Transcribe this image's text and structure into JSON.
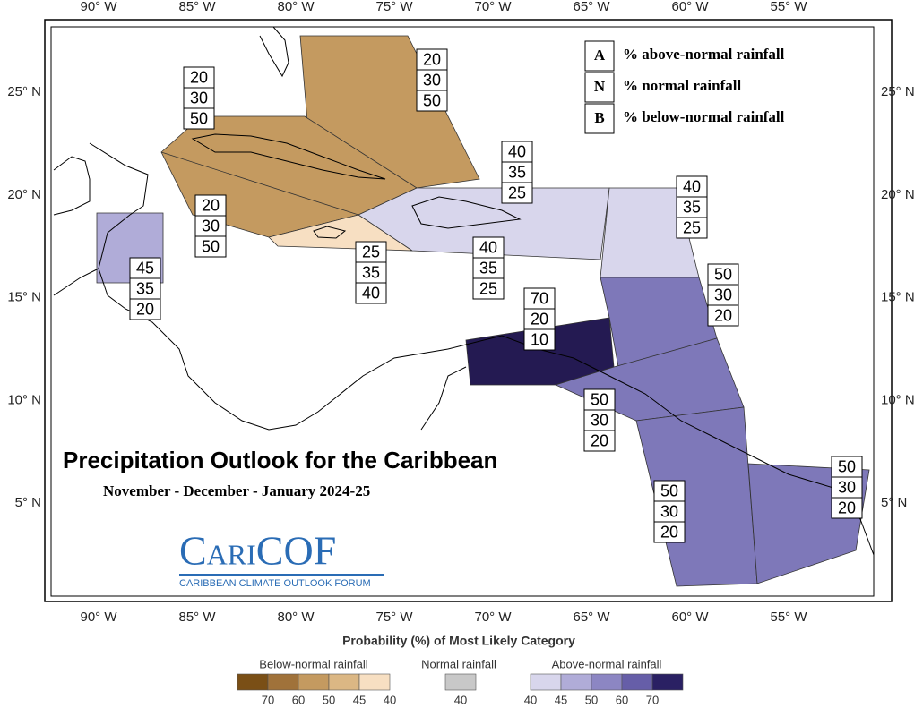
{
  "lon_labels": [
    "90° W",
    "85° W",
    "80° W",
    "75° W",
    "70° W",
    "65° W",
    "60° W",
    "55° W"
  ],
  "lat_labels": [
    "25° N",
    "20° N",
    "15° N",
    "10° N",
    "5° N"
  ],
  "key": [
    {
      "code": "A",
      "text": "% above-normal rainfall"
    },
    {
      "code": "N",
      "text": "% normal rainfall"
    },
    {
      "code": "B",
      "text": "% below-normal rainfall"
    }
  ],
  "boxes": [
    {
      "values": [
        20,
        30,
        50
      ]
    },
    {
      "values": [
        20,
        30,
        50
      ]
    },
    {
      "values": [
        20,
        30,
        50
      ]
    },
    {
      "values": [
        25,
        35,
        40
      ]
    },
    {
      "values": [
        40,
        35,
        25
      ]
    },
    {
      "values": [
        40,
        35,
        25
      ]
    },
    {
      "values": [
        40,
        35,
        25
      ]
    },
    {
      "values": [
        45,
        35,
        20
      ]
    },
    {
      "values": [
        50,
        30,
        20
      ]
    },
    {
      "values": [
        70,
        20,
        10
      ]
    },
    {
      "values": [
        50,
        30,
        20
      ]
    },
    {
      "values": [
        50,
        30,
        20
      ]
    },
    {
      "values": [
        50,
        30,
        20
      ]
    }
  ],
  "title": "Precipitation Outlook for the Caribbean",
  "subtitle": "November - December - January 2024-25",
  "logo": {
    "name": "CariCOF",
    "tagline": "CARIBBEAN CLIMATE OUTLOOK FORUM"
  },
  "legend": {
    "title": "Probability (%) of Most Likely Category",
    "groups": [
      {
        "label": "Below-normal rainfall",
        "ticks": [
          70,
          60,
          50,
          45,
          40
        ],
        "colors": [
          "#7a4f16",
          "#a0723a",
          "#c49a60",
          "#dbb784",
          "#f7dfc2"
        ]
      },
      {
        "label": "Normal rainfall",
        "ticks": [
          40
        ],
        "colors": [
          "#c8c8c8"
        ]
      },
      {
        "label": "Above-normal rainfall",
        "ticks": [
          40,
          45,
          50,
          60,
          70
        ],
        "colors": [
          "#d8d6ec",
          "#b0acd8",
          "#8c86c3",
          "#665ea8",
          "#2a2063"
        ]
      }
    ]
  }
}
